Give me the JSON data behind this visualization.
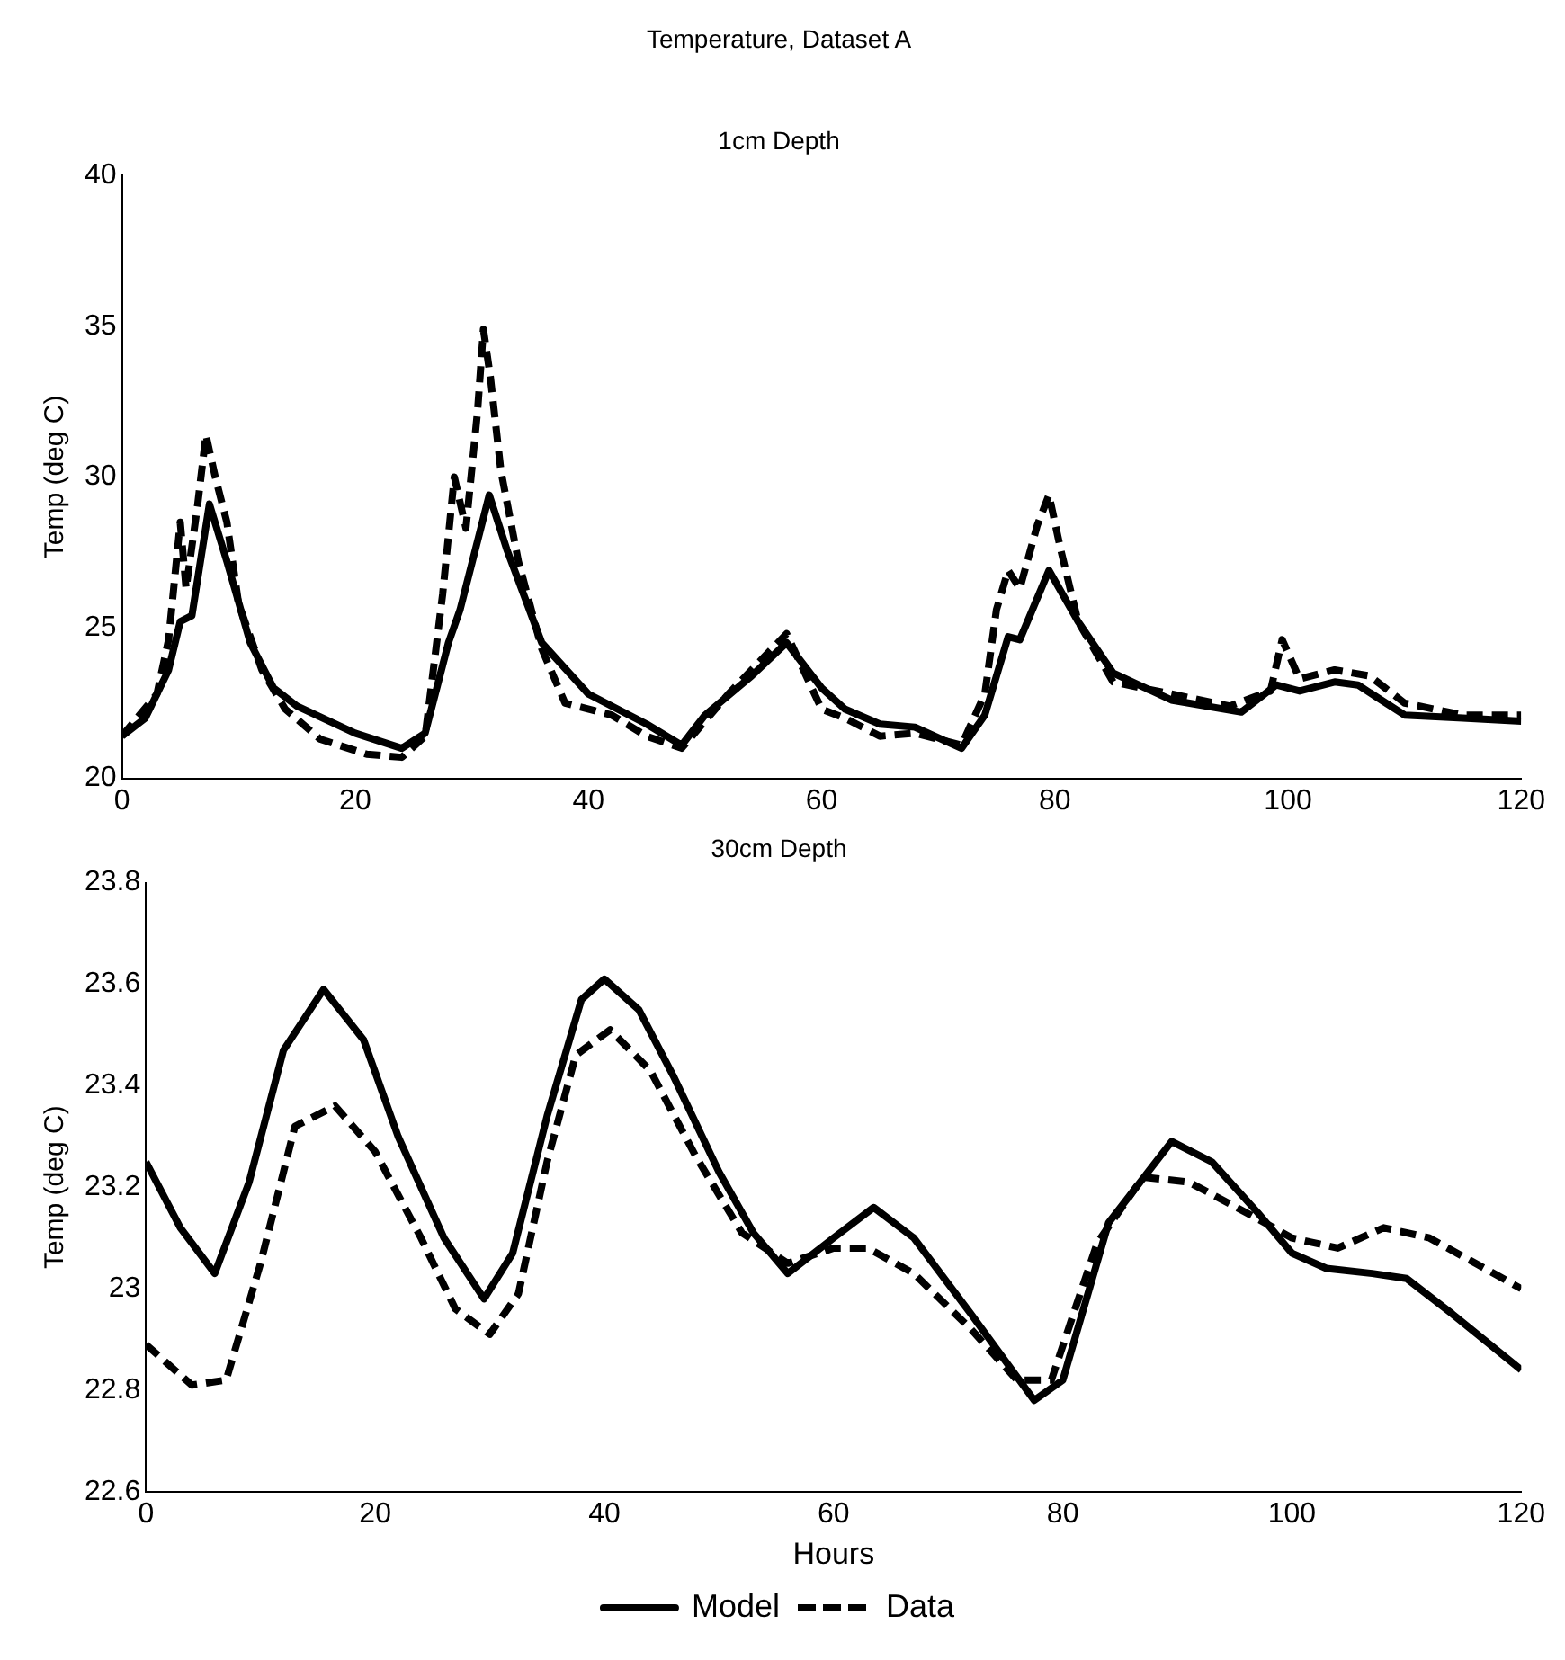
{
  "chart_data": [
    {
      "type": "line",
      "title": "Temperature, Dataset A",
      "subtitle": "1cm Depth",
      "ylabel": "Temp (deg C)",
      "xlim": [
        0,
        120
      ],
      "xticks": [
        0,
        20,
        40,
        60,
        80,
        100,
        120
      ],
      "ylim": [
        20,
        40
      ],
      "yticks": [
        20,
        25,
        30,
        35,
        40
      ],
      "series": [
        {
          "color": "#000000",
          "line_style": "solid",
          "x": [
            0,
            2,
            4,
            5,
            6,
            7.5,
            9,
            11,
            13,
            15,
            20,
            24,
            26,
            28,
            29,
            31.5,
            33,
            36,
            40,
            45,
            48,
            50,
            54,
            57,
            60,
            62,
            65,
            68,
            72,
            74,
            76,
            77,
            79.5,
            82,
            85,
            90,
            96,
            99,
            101,
            104,
            106,
            110,
            115,
            120
          ],
          "values": [
            21.4,
            22.0,
            23.6,
            25.2,
            25.4,
            29.1,
            27.2,
            24.5,
            23.0,
            22.4,
            21.5,
            21.0,
            21.5,
            24.5,
            25.6,
            29.4,
            27.6,
            24.5,
            22.8,
            21.8,
            21.1,
            22.1,
            23.4,
            24.5,
            23.0,
            22.3,
            21.8,
            21.7,
            21.0,
            22.1,
            24.7,
            24.6,
            26.9,
            25.2,
            23.5,
            22.6,
            22.2,
            23.1,
            22.9,
            23.2,
            23.1,
            22.1,
            22.0,
            21.9
          ]
        },
        {
          "color": "#000000",
          "line_style": "dashed",
          "x": [
            0,
            3,
            4,
            5,
            5.5,
            6.5,
            7.2,
            8,
            9,
            10,
            12,
            14,
            17,
            21,
            24,
            26,
            27.5,
            28.5,
            29.5,
            30.5,
            31,
            31.6,
            32.5,
            34,
            36,
            38,
            42,
            45,
            48,
            52,
            56,
            57,
            60,
            62,
            65,
            68,
            72,
            74,
            75,
            76,
            77,
            78.5,
            79.5,
            80.5,
            82,
            85,
            90,
            95,
            98.5,
            99.5,
            101,
            104,
            107,
            110,
            115,
            120
          ],
          "values": [
            21.4,
            22.8,
            24.6,
            28.5,
            26.3,
            29.1,
            31.4,
            30.0,
            28.5,
            25.8,
            23.6,
            22.3,
            21.3,
            20.8,
            20.7,
            21.4,
            26.1,
            30.0,
            28.3,
            32.2,
            34.9,
            33.3,
            30.2,
            27.2,
            24.3,
            22.5,
            22.1,
            21.4,
            21.0,
            22.8,
            24.4,
            24.8,
            22.3,
            22.0,
            21.4,
            21.5,
            21.1,
            22.8,
            25.6,
            26.9,
            26.3,
            28.4,
            29.4,
            27.6,
            25.2,
            23.2,
            22.8,
            22.4,
            22.9,
            24.6,
            23.3,
            23.6,
            23.4,
            22.5,
            22.1,
            22.1
          ]
        }
      ]
    },
    {
      "type": "line",
      "title": "30cm Depth",
      "xlabel": "Hours",
      "ylabel": "Temp (deg C)",
      "xlim": [
        0,
        120
      ],
      "xticks": [
        0,
        20,
        40,
        60,
        80,
        100,
        120
      ],
      "ylim": [
        22.6,
        23.8
      ],
      "yticks": [
        22.6,
        22.8,
        23,
        23.2,
        23.4,
        23.6,
        23.8
      ],
      "legend": "bottom",
      "series": [
        {
          "name": "Model",
          "color": "#000000",
          "line_style": "solid",
          "x": [
            0,
            3,
            6,
            9,
            12,
            15.5,
            19,
            22,
            26,
            29.5,
            32,
            35,
            38,
            40,
            43,
            46,
            50,
            53,
            56,
            60,
            63.5,
            67,
            72,
            77.5,
            80,
            84,
            89.5,
            93,
            97,
            100,
            103,
            107,
            110,
            114,
            120
          ],
          "values": [
            23.25,
            23.12,
            23.03,
            23.21,
            23.47,
            23.59,
            23.49,
            23.3,
            23.1,
            22.98,
            23.07,
            23.34,
            23.57,
            23.61,
            23.55,
            23.42,
            23.23,
            23.11,
            23.03,
            23.1,
            23.16,
            23.1,
            22.95,
            22.78,
            22.82,
            23.13,
            23.29,
            23.25,
            23.15,
            23.07,
            23.04,
            23.03,
            23.02,
            22.95,
            22.84
          ]
        },
        {
          "name": "Data",
          "color": "#000000",
          "line_style": "dashed",
          "x": [
            0,
            4,
            7,
            10,
            13,
            16.5,
            20,
            24,
            27,
            30,
            32.5,
            35,
            37.5,
            40.5,
            44,
            48,
            52,
            56,
            60,
            63,
            67,
            72,
            76,
            79,
            83,
            87,
            91,
            96,
            100,
            104,
            108,
            112,
            116,
            120
          ],
          "values": [
            22.89,
            22.81,
            22.82,
            23.05,
            23.32,
            23.36,
            23.27,
            23.1,
            22.96,
            22.91,
            22.99,
            23.25,
            23.46,
            23.51,
            23.43,
            23.26,
            23.11,
            23.05,
            23.08,
            23.08,
            23.03,
            22.92,
            22.82,
            22.82,
            23.09,
            23.22,
            23.21,
            23.15,
            23.1,
            23.08,
            23.12,
            23.1,
            23.05,
            23
          ]
        }
      ]
    }
  ]
}
